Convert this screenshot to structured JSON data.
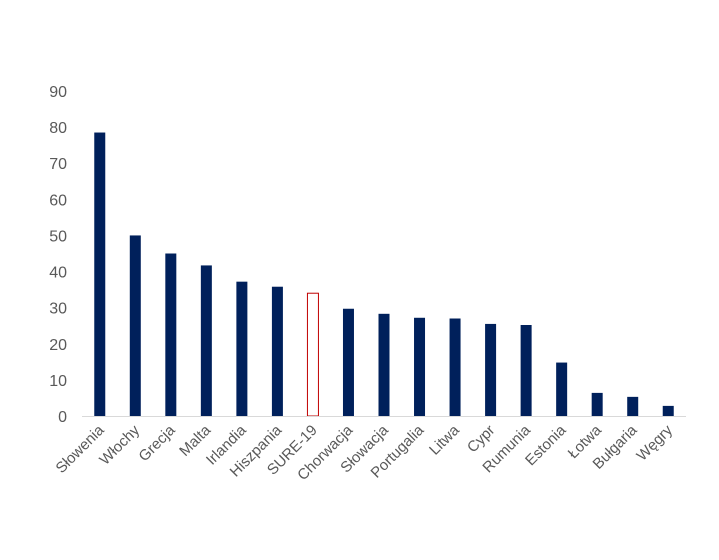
{
  "chart_data": {
    "type": "bar",
    "title": "",
    "xlabel": "",
    "ylabel": "",
    "ylim": [
      0,
      90
    ],
    "yticks": [
      0,
      10,
      20,
      30,
      40,
      50,
      60,
      70,
      80,
      90
    ],
    "grid": false,
    "legend": "none",
    "categories": [
      "Słowenia",
      "Włochy",
      "Grecja",
      "Malta",
      "Irlandia",
      "Hiszpania",
      "SURE-19",
      "Chorwacja",
      "Słowacja",
      "Portugalia",
      "Litwa",
      "Cypr",
      "Rumunia",
      "Estonia",
      "Łotwa",
      "Bułgaria",
      "Węgry"
    ],
    "values": [
      78.5,
      50,
      45,
      41.7,
      37.2,
      35.8,
      34,
      29.7,
      28.3,
      27.2,
      27,
      25.5,
      25.2,
      14.8,
      6.4,
      5.3,
      2.8
    ],
    "colors": {
      "bar": "#00205B",
      "highlight_fill": "#FFFFFF",
      "highlight_border": "#C00000",
      "axis": "#D9D9D9",
      "text": "#595959"
    },
    "highlight_category": "SURE-19"
  }
}
